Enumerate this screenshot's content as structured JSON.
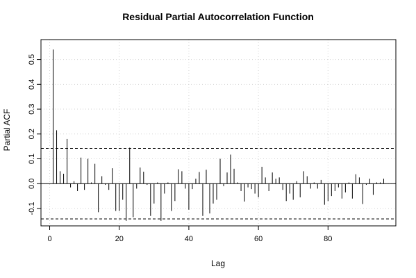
{
  "chart_data": {
    "type": "bar",
    "title": "Residual Partial Autocorrelation Function",
    "xlabel": "Lag",
    "ylabel": "Partial ACF",
    "xlim": [
      -2.5,
      99.5
    ],
    "ylim": [
      -0.17,
      0.58
    ],
    "xticks": [
      0,
      20,
      40,
      60,
      80
    ],
    "yticks": [
      -0.1,
      0.0,
      0.1,
      0.2,
      0.3,
      0.4,
      0.5
    ],
    "ytick_labels": [
      "-0.1",
      "0.0",
      "0.1",
      "0.2",
      "0.3",
      "0.4",
      "0.5"
    ],
    "grid": true,
    "conf_limit": 0.142,
    "lags": [
      1,
      2,
      3,
      4,
      5,
      6,
      7,
      8,
      9,
      10,
      11,
      12,
      13,
      14,
      15,
      16,
      17,
      18,
      19,
      20,
      21,
      22,
      23,
      24,
      25,
      26,
      27,
      28,
      29,
      30,
      31,
      32,
      33,
      34,
      35,
      36,
      37,
      38,
      39,
      40,
      41,
      42,
      43,
      44,
      45,
      46,
      47,
      48,
      49,
      50,
      51,
      52,
      53,
      54,
      55,
      56,
      57,
      58,
      59,
      60,
      61,
      62,
      63,
      64,
      65,
      66,
      67,
      68,
      69,
      70,
      71,
      72,
      73,
      74,
      75,
      76,
      77,
      78,
      79,
      80,
      81,
      82,
      83,
      84,
      85,
      86,
      87,
      88,
      89,
      90,
      91,
      92,
      93,
      94,
      95,
      96
    ],
    "values": [
      0.54,
      0.215,
      0.05,
      0.04,
      0.18,
      -0.015,
      0.01,
      -0.03,
      0.105,
      -0.025,
      0.1,
      0.005,
      0.08,
      -0.115,
      0.03,
      -0.005,
      -0.025,
      0.062,
      -0.11,
      -0.11,
      -0.065,
      -0.15,
      0.145,
      -0.135,
      -0.02,
      0.065,
      0.048,
      -0.005,
      -0.13,
      -0.08,
      0.005,
      -0.15,
      -0.04,
      0.005,
      -0.11,
      -0.07,
      0.058,
      0.05,
      -0.02,
      -0.105,
      -0.022,
      0.02,
      0.047,
      -0.13,
      0.056,
      -0.12,
      -0.08,
      -0.065,
      0.1,
      -0.01,
      0.045,
      0.117,
      0.06,
      0.005,
      -0.03,
      -0.072,
      -0.015,
      -0.022,
      -0.04,
      -0.055,
      0.068,
      0.025,
      -0.03,
      0.045,
      0.02,
      0.025,
      -0.025,
      -0.07,
      -0.04,
      -0.065,
      0.01,
      -0.055,
      0.05,
      0.03,
      -0.02,
      0.005,
      -0.02,
      0.015,
      -0.085,
      -0.07,
      -0.05,
      -0.03,
      -0.015,
      -0.06,
      -0.035,
      0.005,
      -0.06,
      0.038,
      0.025,
      -0.082,
      -0.005,
      0.02,
      -0.045,
      0.005,
      0.005,
      0.02
    ]
  }
}
